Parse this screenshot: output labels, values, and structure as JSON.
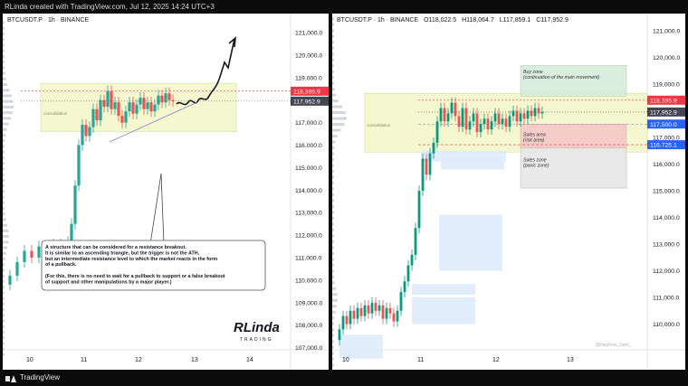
{
  "topbar": {
    "text": "RLinda created with TradingView.com, Jul 12, 2025 14:24 UTC+3"
  },
  "footer": {
    "brand": "TradingView"
  },
  "colors": {
    "up": "#26a69a",
    "down": "#ef5350",
    "up_candle_right": "#089981",
    "price_red": "#f23645",
    "price_gray": "#434651",
    "price_blue": "#2962ff",
    "zone_yellow": "#f3f7c6",
    "zone_green": "#d5ecd9",
    "zone_red": "#f5c7c7",
    "zone_gray": "#e7e7e7",
    "zone_blue": "#ddeafc"
  },
  "chart_data": [
    {
      "type": "candlestick",
      "title": "BTCUSDT.P · 1h · BINANCE",
      "x_ticks": [
        "10",
        "11",
        "12",
        "13",
        "14"
      ],
      "y_ticks": [
        "121,000.0",
        "120,000.0",
        "119,000.0",
        "118,000.0",
        "117,000.0",
        "116,000.0",
        "115,000.0",
        "114,000.0",
        "113,000.0",
        "112,000.0",
        "111,000.0",
        "110,000.0",
        "109,000.0",
        "108,000.0",
        "107,000.0"
      ],
      "ylim": [
        106500,
        122000
      ],
      "price_labels": [
        {
          "text": "118,395.9",
          "role": "high"
        },
        {
          "text": "117,952.9",
          "role": "last"
        }
      ],
      "zone_label": "consolidation",
      "annotation": {
        "line1": "A structure that can be considered for a resistance breakout.",
        "line2": "It is similar to an ascending triangle, but the trigger is not the ATH,",
        "line3": "but an intermediate resistance level to which the market reacts in the form",
        "line4": "of a pullback.",
        "line5": "(For this, there is no need to wait for a pullback to support or a false breakout",
        "line6": "of support and other manipulations by a major player.)"
      },
      "logo": {
        "big": "RLinda",
        "small": "TRADING"
      }
    },
    {
      "type": "candlestick",
      "header": {
        "symbol": "BTCUSDT.P · 1h · BINANCE",
        "open": "O118,022.5",
        "high": "H118,064.7",
        "low": "L117,859.1",
        "close": "C117,952.9"
      },
      "x_ticks": [
        "10",
        "11",
        "12",
        "13"
      ],
      "y_ticks": [
        "121,000.0",
        "120,000.0",
        "119,000.0",
        "118,000.0",
        "117,000.0",
        "116,000.0",
        "115,000.0",
        "114,000.0",
        "113,000.0",
        "112,000.0",
        "111,000.0",
        "110,000.0"
      ],
      "ylim": [
        109300,
        121800
      ],
      "price_labels": [
        {
          "text": "118,395.9",
          "role": "high"
        },
        {
          "text": "117,952.9",
          "role": "last"
        },
        {
          "text": "117,500.0",
          "role": "level"
        },
        {
          "text": "116,725.1",
          "role": "level"
        }
      ],
      "zones": {
        "consolidation": "consolidation",
        "buy_title": "Buy zone",
        "buy_sub": "(continuation of the main movement)",
        "sales_title": "Sales area",
        "sales_sub": "(risk area)",
        "panic_title": "Sales zone",
        "panic_sub": "(panic zone)"
      },
      "watermark": "@Nephew_Sam_"
    }
  ]
}
